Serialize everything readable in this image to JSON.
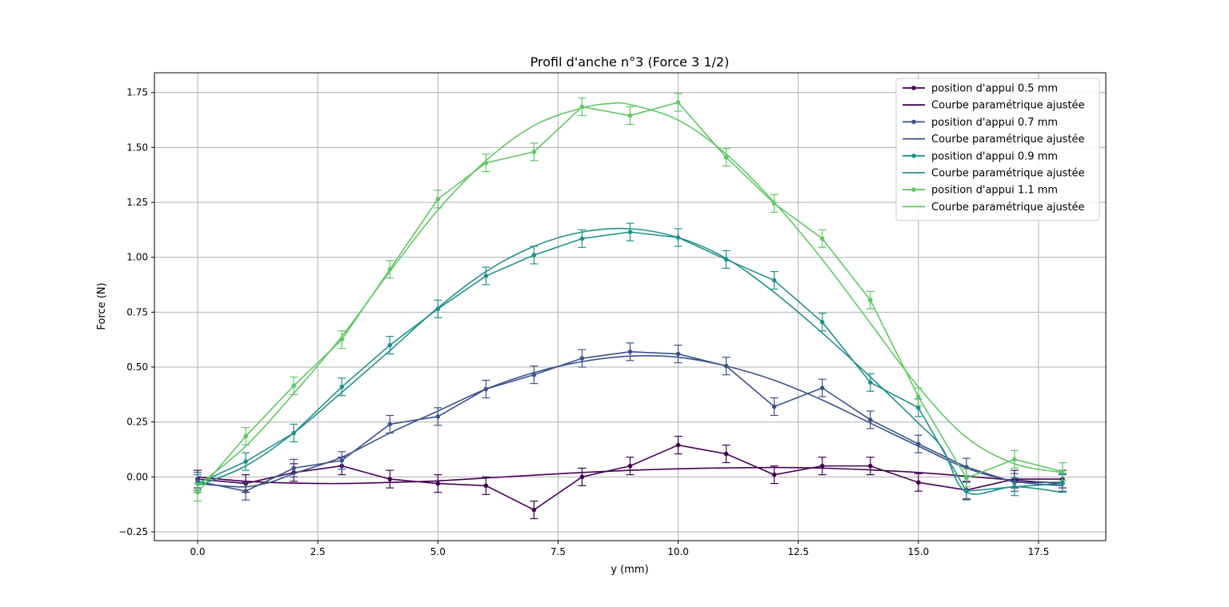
{
  "chart_data": {
    "type": "line",
    "title": "Profil d'anche n°3 (Force 3 1/2)",
    "xlabel": "y (mm)",
    "ylabel": "Force (N)",
    "xlim": [
      -0.9,
      18.9
    ],
    "ylim": [
      -0.29,
      1.84
    ],
    "xticks": [
      0.0,
      2.5,
      5.0,
      7.5,
      10.0,
      12.5,
      15.0,
      17.5
    ],
    "xtick_labels": [
      "0.0",
      "2.5",
      "5.0",
      "7.5",
      "10.0",
      "12.5",
      "15.0",
      "17.5"
    ],
    "yticks": [
      -0.25,
      0.0,
      0.25,
      0.5,
      0.75,
      1.0,
      1.25,
      1.5,
      1.75
    ],
    "ytick_labels": [
      "−0.25",
      "0.00",
      "0.25",
      "0.50",
      "0.75",
      "1.00",
      "1.25",
      "1.50",
      "1.75"
    ],
    "grid": true,
    "legend_position": "top-right",
    "x": [
      0,
      1,
      2,
      3,
      4,
      5,
      6,
      7,
      8,
      9,
      10,
      11,
      12,
      13,
      14,
      15,
      16,
      17,
      18
    ],
    "series": [
      {
        "name": "position d'appui 0.5 mm",
        "color": "#440154",
        "values": [
          -0.01,
          -0.03,
          0.02,
          0.05,
          -0.01,
          -0.03,
          -0.04,
          -0.15,
          0.0,
          0.05,
          0.145,
          0.105,
          0.01,
          0.05,
          0.05,
          -0.025,
          -0.06,
          -0.01,
          -0.01
        ],
        "error": 0.04,
        "fit_name": "Courbe paramétrique ajustée",
        "fit": [
          [
            0,
            0.0
          ],
          [
            1,
            -0.02
          ],
          [
            2,
            -0.028
          ],
          [
            3,
            -0.03
          ],
          [
            4,
            -0.025
          ],
          [
            5,
            -0.018
          ],
          [
            6,
            -0.005
          ],
          [
            7,
            0.008
          ],
          [
            8,
            0.02
          ],
          [
            9,
            0.03
          ],
          [
            10,
            0.037
          ],
          [
            11,
            0.041
          ],
          [
            12,
            0.043
          ],
          [
            13,
            0.04
          ],
          [
            14,
            0.032
          ],
          [
            15,
            0.02
          ],
          [
            16,
            0.003
          ],
          [
            17,
            -0.015
          ],
          [
            18,
            -0.03
          ]
        ]
      },
      {
        "name": "position d'appui 0.7 mm",
        "color": "#3b528b",
        "values": [
          -0.02,
          -0.065,
          0.04,
          0.075,
          0.24,
          0.275,
          0.4,
          0.465,
          0.54,
          0.57,
          0.56,
          0.505,
          0.32,
          0.405,
          0.26,
          0.15,
          0.045,
          -0.025,
          -0.025
        ],
        "error": 0.04,
        "fit_name": "Courbe paramétrique ajustée",
        "fit": [
          [
            0,
            -0.03
          ],
          [
            0.5,
            -0.04
          ],
          [
            1,
            -0.045
          ],
          [
            1.5,
            -0.025
          ],
          [
            2,
            0.015
          ],
          [
            3,
            0.09
          ],
          [
            4,
            0.2
          ],
          [
            5,
            0.3
          ],
          [
            6,
            0.4
          ],
          [
            7,
            0.475
          ],
          [
            8,
            0.525
          ],
          [
            9,
            0.55
          ],
          [
            10,
            0.545
          ],
          [
            11,
            0.505
          ],
          [
            12,
            0.44
          ],
          [
            13,
            0.35
          ],
          [
            14,
            0.245
          ],
          [
            15,
            0.14
          ],
          [
            16,
            0.04
          ],
          [
            17,
            -0.02
          ],
          [
            18,
            -0.04
          ]
        ]
      },
      {
        "name": "position d'appui 0.9 mm",
        "color": "#21918c",
        "values": [
          -0.03,
          0.07,
          0.2,
          0.41,
          0.6,
          0.765,
          0.915,
          1.01,
          1.085,
          1.115,
          1.09,
          0.99,
          0.895,
          0.705,
          0.43,
          0.315,
          -0.065,
          -0.045,
          -0.03
        ],
        "error": 0.04,
        "fit_name": "Courbe paramétrique ajustée",
        "fit": [
          [
            0,
            -0.04
          ],
          [
            1,
            0.05
          ],
          [
            2,
            0.2
          ],
          [
            3,
            0.385
          ],
          [
            4,
            0.575
          ],
          [
            5,
            0.77
          ],
          [
            6,
            0.935
          ],
          [
            7,
            1.05
          ],
          [
            8,
            1.115
          ],
          [
            9,
            1.13
          ],
          [
            10,
            1.09
          ],
          [
            11,
            0.995
          ],
          [
            12,
            0.84
          ],
          [
            13,
            0.655
          ],
          [
            14,
            0.455
          ],
          [
            15,
            0.245
          ],
          [
            15.5,
            0.13
          ],
          [
            16,
            -0.07
          ],
          [
            17,
            -0.045
          ],
          [
            18,
            -0.07
          ]
        ]
      },
      {
        "name": "position d'appui 1.1 mm",
        "color": "#5ec962",
        "values": [
          -0.07,
          0.185,
          0.415,
          0.625,
          0.945,
          1.265,
          1.43,
          1.48,
          1.685,
          1.645,
          1.705,
          1.455,
          1.245,
          1.085,
          0.805,
          0.365,
          -0.005,
          0.08,
          0.025
        ],
        "error": 0.04,
        "fit_name": "Courbe paramétrique ajustée",
        "fit": [
          [
            0,
            -0.04
          ],
          [
            1,
            0.14
          ],
          [
            2,
            0.38
          ],
          [
            3,
            0.64
          ],
          [
            4,
            0.935
          ],
          [
            5,
            1.215
          ],
          [
            6,
            1.44
          ],
          [
            7,
            1.6
          ],
          [
            8,
            1.68
          ],
          [
            8.6,
            1.7
          ],
          [
            9,
            1.695
          ],
          [
            10,
            1.625
          ],
          [
            11,
            1.47
          ],
          [
            12,
            1.25
          ],
          [
            13,
            0.99
          ],
          [
            14,
            0.7
          ],
          [
            15,
            0.41
          ],
          [
            16,
            0.18
          ],
          [
            17,
            0.06
          ],
          [
            18,
            0.02
          ]
        ]
      }
    ]
  }
}
